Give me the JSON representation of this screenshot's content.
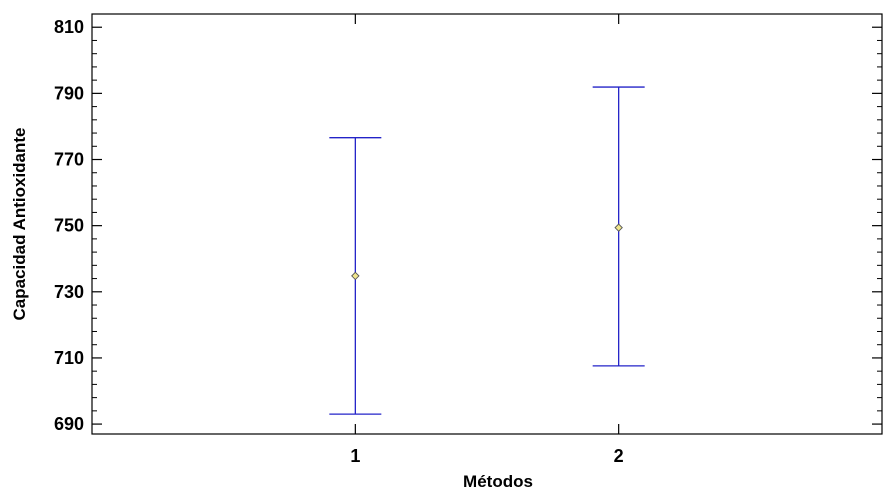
{
  "chart_data": {
    "type": "errorbar",
    "xlabel": "Métodos",
    "ylabel": "Capacidad Antioxidante",
    "ylim": [
      687,
      814
    ],
    "xlim": [
      0,
      3
    ],
    "grid": false,
    "y_ticks_major": [
      690,
      710,
      730,
      750,
      770,
      790,
      810
    ],
    "y_tick_labels": [
      "690",
      "710",
      "730",
      "750",
      "770",
      "790",
      "810"
    ],
    "y_minor_step": 4,
    "x_ticks": [
      1,
      2
    ],
    "x_tick_labels": [
      "1",
      "2"
    ],
    "points": [
      {
        "x": 1,
        "mean": 734.8,
        "lower": 693.0,
        "upper": 776.6
      },
      {
        "x": 2,
        "mean": 749.4,
        "lower": 707.6,
        "upper": 791.9
      }
    ],
    "colors": {
      "errorbar": "#2323c8",
      "marker_fill": "#f0e68c",
      "marker_stroke": "#555555",
      "axis": "#000000"
    }
  }
}
